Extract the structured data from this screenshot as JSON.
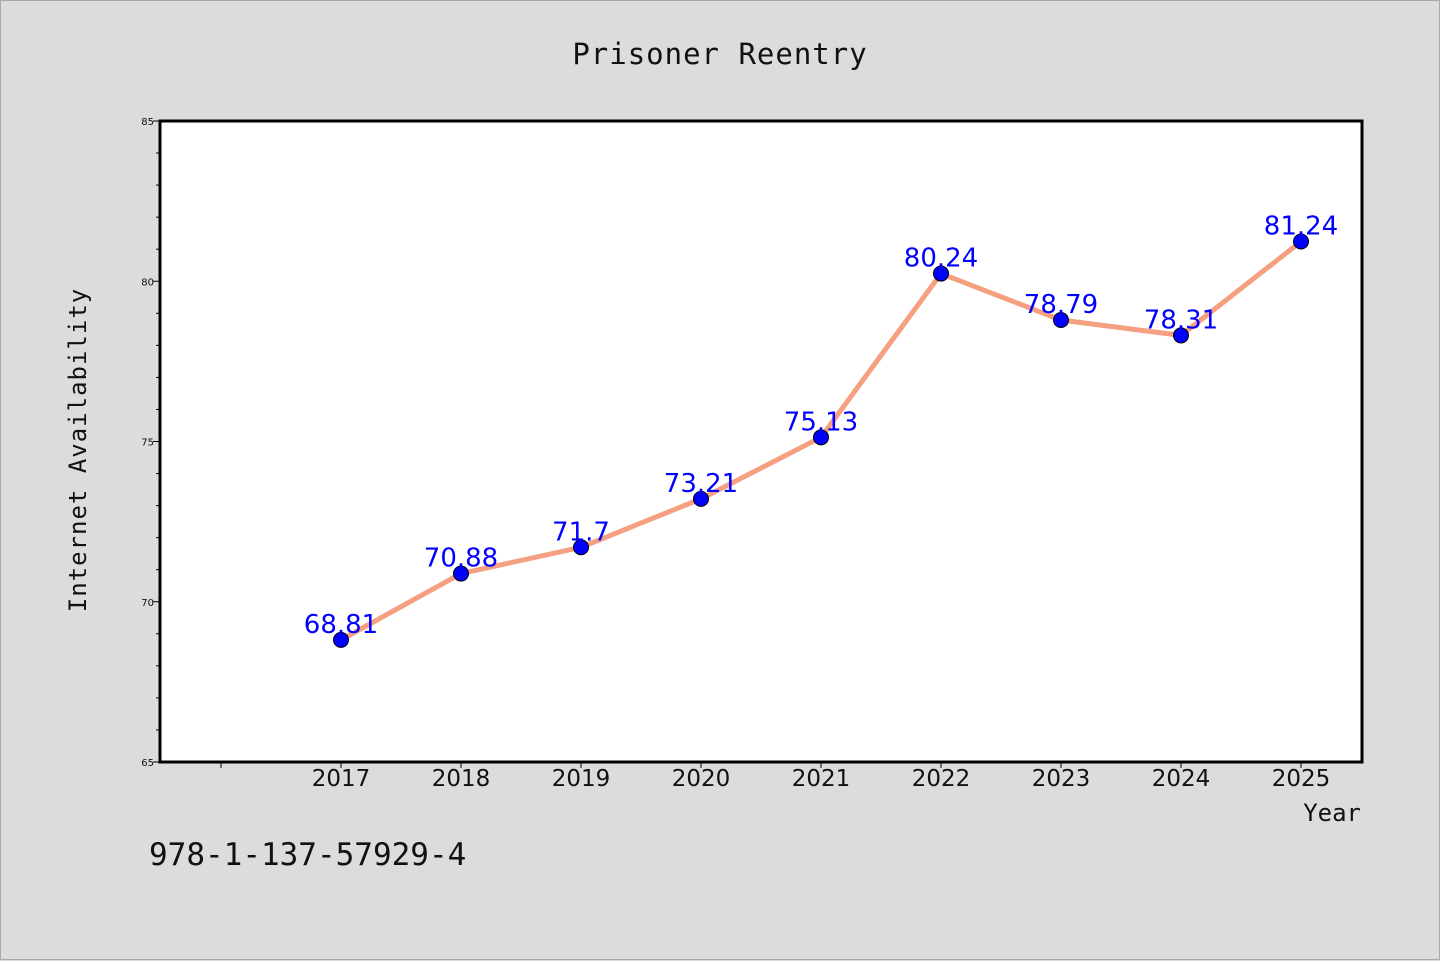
{
  "chart_data": {
    "type": "line",
    "title": "Prisoner Reentry",
    "xlabel": "Year",
    "ylabel": "Internet Availability",
    "categories": [
      "2017",
      "2018",
      "2019",
      "2020",
      "2021",
      "2022",
      "2023",
      "2024",
      "2025"
    ],
    "series": [
      {
        "values": [
          68.81,
          70.88,
          71.7,
          73.21,
          75.13,
          80.24,
          78.79,
          78.31,
          81.24
        ],
        "labels": [
          "68.81",
          "70.88",
          "71.7",
          "73.21",
          "75.13",
          "80.24",
          "78.79",
          "78.31",
          "81.24"
        ]
      }
    ],
    "ylim": [
      65,
      85
    ],
    "yticks": [
      65,
      70,
      75,
      80,
      85
    ],
    "grid": false,
    "legend": "none",
    "colors": {
      "line": "#f4a081",
      "marker": "#0000ff",
      "data_label": "#0000ff",
      "background": "#dcdcdc",
      "plot_background": "#ffffff"
    }
  },
  "footer": {
    "text": "978-1-137-57929-4"
  }
}
